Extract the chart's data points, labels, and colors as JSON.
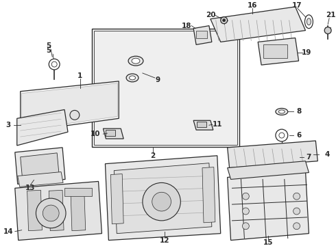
{
  "bg_color": "#ffffff",
  "fg_color": "#2a2a2a",
  "fig_width": 4.9,
  "fig_height": 3.6,
  "dpi": 100
}
